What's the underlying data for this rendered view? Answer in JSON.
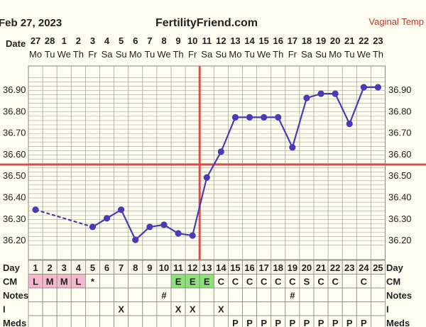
{
  "header": {
    "date": "Feb 27, 2023",
    "site": "FertilityFriend.com",
    "temp_type": "Vaginal Temp",
    "date_row_label": "Date"
  },
  "colors": {
    "background": "#fdfdf0",
    "grid": "#a9a69a",
    "temp_line": "#4a3bb5",
    "coverline": "#d94e4e",
    "ovulation_line": "#d94e4e",
    "cm_fertile_fill": "#f6b8cf",
    "cm_peak_fill": "#8ee07a",
    "temp_type_text": "#c0392b"
  },
  "chart_data": {
    "type": "line",
    "ylabel": "",
    "xlabel": "",
    "ylim": [
      36.1,
      37.0
    ],
    "y_ticks": [
      "36.90",
      "36.80",
      "36.70",
      "36.60",
      "36.50",
      "36.40",
      "36.30",
      "36.20"
    ],
    "coverline": 36.55,
    "ovulation_day": 11.5,
    "dates": [
      "27",
      "28",
      "1",
      "2",
      "3",
      "4",
      "5",
      "6",
      "7",
      "8",
      "9",
      "10",
      "11",
      "12",
      "13",
      "14",
      "15",
      "16",
      "17",
      "18",
      "19",
      "20",
      "21",
      "22",
      "23"
    ],
    "weekdays": [
      "Mo",
      "Tu",
      "We",
      "Th",
      "Fr",
      "Sa",
      "Su",
      "Mo",
      "Tu",
      "We",
      "Th",
      "Fr",
      "Sa",
      "Su",
      "Mo",
      "Tu",
      "We",
      "Th",
      "Fr",
      "Sa",
      "Su",
      "Mo",
      "Tu",
      "We",
      "Th"
    ],
    "days": [
      "1",
      "2",
      "3",
      "4",
      "5",
      "6",
      "7",
      "8",
      "9",
      "10",
      "11",
      "12",
      "13",
      "14",
      "15",
      "16",
      "17",
      "18",
      "19",
      "20",
      "21",
      "22",
      "23",
      "24",
      "25"
    ],
    "series": [
      {
        "values": [
          36.34,
          null,
          null,
          null,
          36.26,
          36.3,
          36.34,
          36.2,
          36.26,
          36.27,
          36.23,
          36.22,
          36.49,
          36.61,
          36.77,
          36.77,
          36.77,
          36.77,
          36.63,
          36.86,
          36.88,
          36.88,
          36.74,
          36.91,
          36.91
        ]
      }
    ]
  },
  "rows": {
    "day_label": "Day",
    "cm_label": "CM",
    "notes_label": "Notes",
    "i_label": "I",
    "meds_label": "Meds",
    "cm": [
      "L",
      "M",
      "M",
      "L",
      "*",
      "",
      "",
      "",
      "",
      "",
      "E",
      "E",
      "E",
      "C",
      "C",
      "C",
      "C",
      "C",
      "C",
      "S",
      "C",
      "C",
      "",
      "C",
      ""
    ],
    "cm_style": [
      "fertile",
      "fertile",
      "fertile",
      "fertile",
      "none",
      "none",
      "none",
      "none",
      "none",
      "none",
      "peak",
      "peak",
      "peak",
      "none",
      "none",
      "none",
      "none",
      "none",
      "none",
      "none",
      "none",
      "none",
      "none",
      "none",
      "none"
    ],
    "notes": [
      "",
      "",
      "",
      "",
      "",
      "",
      "",
      "",
      "",
      "#",
      "",
      "",
      "",
      "",
      "",
      "",
      "",
      "",
      "#",
      "",
      "",
      "",
      "",
      "",
      ""
    ],
    "i": [
      "",
      "",
      "",
      "",
      "",
      "",
      "X",
      "",
      "",
      "",
      "X",
      "X",
      "",
      "X",
      "",
      "",
      "",
      "",
      "",
      "",
      "",
      "",
      "",
      "",
      ""
    ],
    "meds": [
      "",
      "",
      "",
      "",
      "",
      "",
      "",
      "",
      "",
      "",
      "",
      "",
      "",
      "",
      "P",
      "P",
      "P",
      "P",
      "P",
      "P",
      "P",
      "P",
      "P",
      "P",
      ""
    ]
  }
}
